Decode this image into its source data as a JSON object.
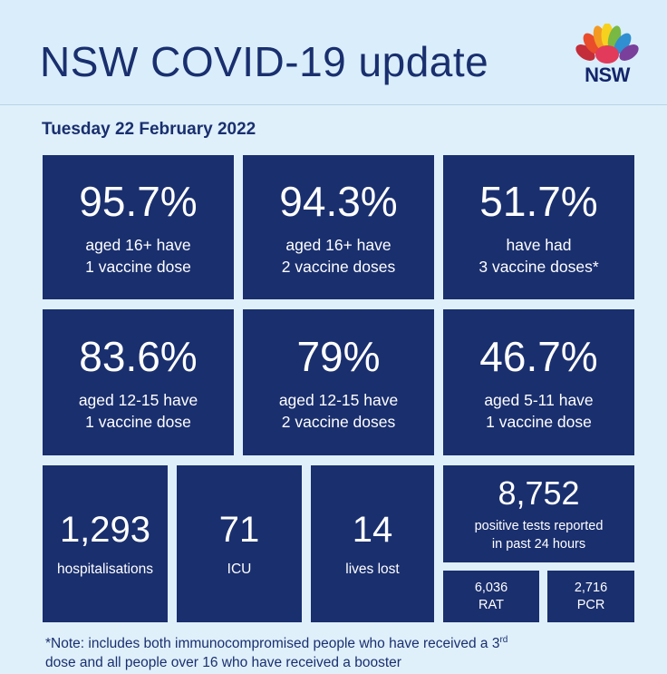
{
  "header": {
    "title": "NSW COVID-19 update",
    "logo_text": "NSW"
  },
  "date": "Tuesday 22 February 2022",
  "vaccine_tiles": [
    {
      "value": "95.7%",
      "line1": "aged 16+ have",
      "line2": "1 vaccine dose"
    },
    {
      "value": "94.3%",
      "line1": "aged 16+ have",
      "line2": "2 vaccine doses"
    },
    {
      "value": "51.7%",
      "line1": "have had",
      "line2": "3 vaccine doses*"
    },
    {
      "value": "83.6%",
      "line1": "aged 12-15 have",
      "line2": "1 vaccine dose"
    },
    {
      "value": "79%",
      "line1": "aged 12-15 have",
      "line2": "2 vaccine doses"
    },
    {
      "value": "46.7%",
      "line1": "aged 5-11 have",
      "line2": "1 vaccine dose"
    }
  ],
  "stats": [
    {
      "value": "1,293",
      "label": "hospitalisations"
    },
    {
      "value": "71",
      "label": "ICU"
    },
    {
      "value": "14",
      "label": "lives lost"
    }
  ],
  "tests": {
    "value": "8,752",
    "line1": "positive tests reported",
    "line2": "in past 24 hours",
    "rat_value": "6,036",
    "rat_label": "RAT",
    "pcr_value": "2,716",
    "pcr_label": "PCR"
  },
  "note": {
    "part1": "*Note: includes both immunocompromised  people who have received a 3",
    "sup": "rd",
    "part2": "dose and all people over 16 who have received a booster"
  },
  "colors": {
    "navy": "#1a2f6e",
    "background": "#dff0fb"
  }
}
